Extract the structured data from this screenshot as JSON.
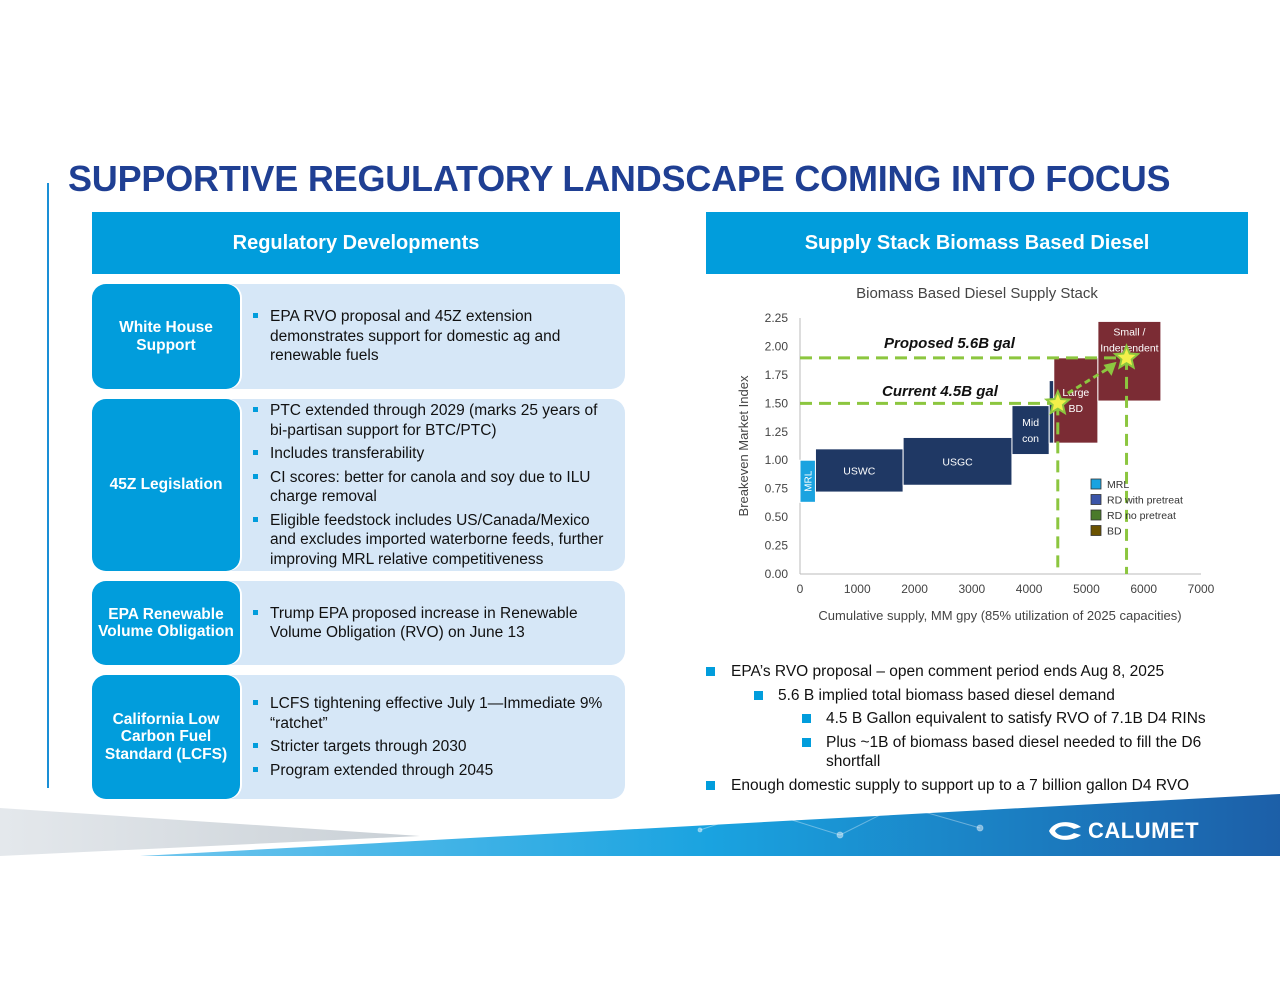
{
  "page": {
    "title": "SUPPORTIVE REGULATORY LANDSCAPE COMING INTO FOCUS",
    "brand": "CALUMET",
    "colors": {
      "accent": "#019ddc",
      "title": "#1f3f93",
      "panel": "#d6e7f7",
      "navy": "#1f3864",
      "maroon": "#7b2c34"
    }
  },
  "left": {
    "header": "Regulatory Developments",
    "rows": [
      {
        "label": "White House Support",
        "bullets": [
          "EPA RVO proposal and 45Z extension demonstrates support for domestic ag and renewable fuels"
        ]
      },
      {
        "label": "45Z Legislation",
        "bullets": [
          "PTC extended through 2029 (marks 25 years of bi-partisan support for BTC/PTC)",
          "Includes transferability",
          "CI scores: better for canola and soy due to ILU charge removal",
          "Eligible feedstock includes US/Canada/Mexico and excludes imported waterborne feeds, further improving MRL relative competitiveness"
        ]
      },
      {
        "label": "EPA Renewable Volume Obligation",
        "bullets": [
          "Trump EPA proposed increase in Renewable Volume Obligation (RVO) on June 13"
        ]
      },
      {
        "label": "California Low Carbon Fuel Standard (LCFS)",
        "bullets": [
          "LCFS tightening effective July 1—Immediate 9% “ratchet”",
          "Stricter targets through 2030",
          "Program extended through 2045"
        ]
      }
    ]
  },
  "right": {
    "header": "Supply Stack Biomass Based Diesel",
    "notes": [
      {
        "level": 1,
        "text": "EPA’s RVO proposal – open comment period ends Aug 8, 2025"
      },
      {
        "level": 2,
        "text": "5.6 B implied total biomass based diesel demand"
      },
      {
        "level": 3,
        "text": "4.5 B Gallon equivalent to satisfy RVO of 7.1B D4 RINs"
      },
      {
        "level": 3,
        "text": "Plus ~1B of  biomass based diesel needed to fill the D6 shortfall"
      },
      {
        "level": 1,
        "text": "Enough domestic supply to support up to a 7 billion gallon D4 RVO"
      }
    ]
  },
  "chart_data": {
    "type": "bar",
    "title": "Biomass Based Diesel Supply Stack",
    "xlabel": "Cumulative supply, MM gpy (85% utilization of 2025 capacities)",
    "ylabel": "Breakeven Market Index",
    "xlim": [
      0,
      7000
    ],
    "ylim": [
      0,
      2.25
    ],
    "xticks": [
      0,
      1000,
      2000,
      3000,
      4000,
      5000,
      6000,
      7000
    ],
    "yticks": [
      "0.00",
      "0.25",
      "0.50",
      "0.75",
      "1.00",
      "1.25",
      "1.50",
      "1.75",
      "2.00",
      "2.25"
    ],
    "grid": false,
    "legend": {
      "position": "bottom-right",
      "entries": [
        {
          "name": "MRL",
          "color": "#1aa3e0"
        },
        {
          "name": "RD with pretreat",
          "color": "#3b55a8"
        },
        {
          "name": "RD no pretreat",
          "color": "#4a7a2a"
        },
        {
          "name": "BD",
          "color": "#6b5200"
        }
      ]
    },
    "blocks": [
      {
        "label": "MRL",
        "x0": 0,
        "x1": 270,
        "y0": 0.63,
        "y1": 1.0,
        "color": "#1aa3e0",
        "label_rotated": true
      },
      {
        "label": "USWC",
        "x0": 270,
        "x1": 1800,
        "y0": 0.72,
        "y1": 1.1,
        "color": "#1f3864"
      },
      {
        "label": "USGC",
        "x0": 1800,
        "x1": 3700,
        "y0": 0.78,
        "y1": 1.2,
        "color": "#1f3864"
      },
      {
        "label": "Mid con",
        "x0": 3700,
        "x1": 4350,
        "y0": 1.05,
        "y1": 1.48,
        "color": "#1f3864"
      },
      {
        "label": "",
        "x0": 4350,
        "x1": 4430,
        "y0": 1.15,
        "y1": 1.7,
        "color": "#1f3864"
      },
      {
        "label": "Large BD",
        "x0": 4430,
        "x1": 5200,
        "y0": 1.15,
        "y1": 1.9,
        "color": "#7b2c34"
      },
      {
        "label": "Small / Independent",
        "x0": 5200,
        "x1": 6300,
        "y0": 1.52,
        "y1": 2.22,
        "color": "#7b2c34"
      }
    ],
    "reference_lines": [
      {
        "label": "Proposed 5.6B gal",
        "x": 5700,
        "y": 1.9
      },
      {
        "label": "Current 4.5B gal",
        "x": 4500,
        "y": 1.5
      }
    ]
  }
}
